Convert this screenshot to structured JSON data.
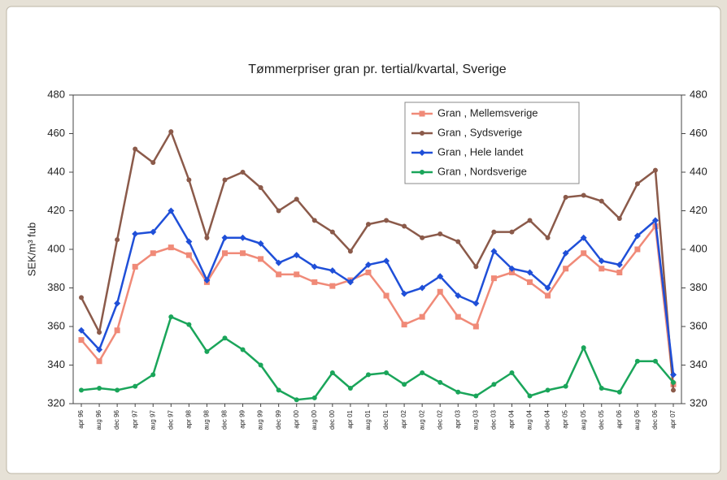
{
  "chart_data": {
    "type": "line",
    "title": "Tømmerpriser gran pr. tertial/kvartal, Sverige",
    "y_label": "SEK/m³ fub",
    "categories": [
      "apr 96",
      "aug 96",
      "dec 96",
      "apr 97",
      "aug 97",
      "dec 97",
      "apr 98",
      "aug 98",
      "dec 98",
      "apr 99",
      "aug 99",
      "dec 99",
      "apr 00",
      "aug 00",
      "dec 00",
      "apr 01",
      "aug 01",
      "dec 01",
      "apr 02",
      "aug 02",
      "dec 02",
      "apr 03",
      "aug 03",
      "dec 03",
      "apr 04",
      "aug 04",
      "dec 04",
      "apr 05",
      "aug 05",
      "dec 05",
      "apr 06",
      "aug 06",
      "dec 06",
      "apr 07"
    ],
    "series": [
      {
        "name": "Gran , Mellemsverige",
        "color": "#f08a78",
        "marker": "square",
        "values": [
          353,
          342,
          358,
          391,
          398,
          401,
          397,
          383,
          398,
          398,
          395,
          387,
          387,
          383,
          381,
          384,
          388,
          376,
          361,
          365,
          378,
          365,
          360,
          385,
          388,
          383,
          376,
          390,
          398,
          390,
          388,
          400,
          412,
          330
        ]
      },
      {
        "name": "Gran , Sydsverige",
        "color": "#8b5a4a",
        "marker": "circle",
        "values": [
          375,
          357,
          405,
          452,
          445,
          461,
          436,
          406,
          436,
          440,
          432,
          420,
          426,
          415,
          409,
          399,
          413,
          415,
          412,
          406,
          408,
          404,
          391,
          409,
          409,
          415,
          406,
          427,
          428,
          425,
          416,
          434,
          441,
          327
        ]
      },
      {
        "name": "Gran , Hele landet",
        "color": "#1f4fd8",
        "marker": "diamond",
        "values": [
          358,
          348,
          372,
          408,
          409,
          420,
          404,
          384,
          406,
          406,
          403,
          393,
          397,
          391,
          389,
          383,
          392,
          394,
          377,
          380,
          386,
          376,
          372,
          399,
          390,
          388,
          380,
          398,
          406,
          394,
          392,
          407,
          415,
          335
        ]
      },
      {
        "name": "Gran , Nordsverige",
        "color": "#1aa55a",
        "marker": "circle",
        "values": [
          327,
          328,
          327,
          329,
          335,
          365,
          361,
          347,
          354,
          348,
          340,
          327,
          322,
          323,
          336,
          328,
          335,
          336,
          330,
          336,
          331,
          326,
          324,
          330,
          336,
          324,
          327,
          329,
          349,
          328,
          326,
          342,
          342,
          331
        ]
      }
    ],
    "ylim": [
      320,
      480
    ],
    "yticks": [
      320,
      340,
      360,
      380,
      400,
      420,
      440,
      460,
      480
    ],
    "y2lim": [
      320,
      480
    ],
    "y2ticks": [
      320,
      340,
      360,
      380,
      400,
      420,
      440,
      460,
      480
    ],
    "grid": false,
    "legend": "upper right"
  }
}
